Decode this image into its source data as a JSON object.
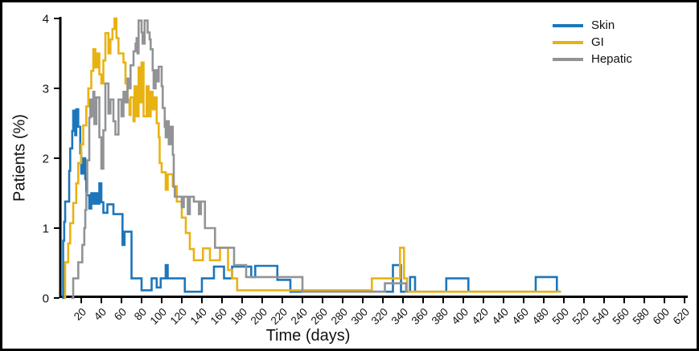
{
  "axes": {
    "x": {
      "title": "Time (days)",
      "ticks": [
        20,
        40,
        60,
        80,
        100,
        120,
        140,
        160,
        180,
        200,
        220,
        240,
        260,
        280,
        300,
        320,
        340,
        360,
        380,
        400,
        420,
        440,
        460,
        480,
        500,
        520,
        540,
        560,
        580,
        600,
        620
      ],
      "min": 0,
      "max": 630
    },
    "y": {
      "title": "Patients (%)",
      "ticks": [
        0,
        1,
        2,
        3,
        4
      ],
      "min": 0,
      "max": 4
    }
  },
  "chart_data": {
    "type": "line",
    "interpolation": "step-after",
    "title": "",
    "xlabel": "Time (days)",
    "ylabel": "Patients (%)",
    "xlim": [
      0,
      630
    ],
    "ylim": [
      0,
      4
    ],
    "grid": false,
    "legend_position": "top-right",
    "series": [
      {
        "name": "Skin",
        "color": "#1d76bb",
        "points": [
          [
            1,
            0
          ],
          [
            2,
            0.82
          ],
          [
            3,
            1.09
          ],
          [
            4,
            1.38
          ],
          [
            8,
            1.82
          ],
          [
            9,
            2.14
          ],
          [
            11,
            2.39
          ],
          [
            12,
            2.68
          ],
          [
            14,
            2.33
          ],
          [
            15,
            2.7
          ],
          [
            17,
            2.45
          ],
          [
            19,
            2.07
          ],
          [
            20,
            1.78
          ],
          [
            22,
            2.0
          ],
          [
            24,
            1.7
          ],
          [
            25,
            1.47
          ],
          [
            28,
            1.28
          ],
          [
            30,
            1.5
          ],
          [
            32,
            1.35
          ],
          [
            34,
            1.5
          ],
          [
            36,
            1.35
          ],
          [
            38,
            1.64
          ],
          [
            40,
            1.37
          ],
          [
            42,
            1.22
          ],
          [
            46,
            1.34
          ],
          [
            52,
            1.2
          ],
          [
            61,
            0.76
          ],
          [
            63,
            0.95
          ],
          [
            70,
            0.28
          ],
          [
            80,
            0.11
          ],
          [
            90,
            0.28
          ],
          [
            95,
            0.15
          ],
          [
            99,
            0.28
          ],
          [
            104,
            0.47
          ],
          [
            106,
            0.28
          ],
          [
            123,
            0.09
          ],
          [
            140,
            0.28
          ],
          [
            152,
            0.45
          ],
          [
            162,
            0.28
          ],
          [
            170,
            0.45
          ],
          [
            189,
            0.3
          ],
          [
            193,
            0.46
          ],
          [
            215,
            0.26
          ],
          [
            228,
            0.09
          ],
          [
            330,
            0.47
          ],
          [
            338,
            0.09
          ],
          [
            347,
            0.3
          ],
          [
            352,
            0.09
          ],
          [
            383,
            0.28
          ],
          [
            405,
            0.09
          ],
          [
            472,
            0.3
          ],
          [
            493,
            0.09
          ],
          [
            497,
            0.09
          ]
        ]
      },
      {
        "name": "GI",
        "color": "#e9b213",
        "points": [
          [
            3,
            0
          ],
          [
            4,
            0.51
          ],
          [
            7,
            0.78
          ],
          [
            9,
            1.07
          ],
          [
            12,
            1.36
          ],
          [
            15,
            1.64
          ],
          [
            17,
            1.93
          ],
          [
            20,
            2.2
          ],
          [
            22,
            2.47
          ],
          [
            25,
            2.74
          ],
          [
            27,
            3.0
          ],
          [
            30,
            3.25
          ],
          [
            32,
            3.56
          ],
          [
            34,
            3.3
          ],
          [
            36,
            3.5
          ],
          [
            38,
            3.2
          ],
          [
            40,
            3.07
          ],
          [
            42,
            3.4
          ],
          [
            44,
            3.79
          ],
          [
            47,
            3.5
          ],
          [
            49,
            3.7
          ],
          [
            51,
            3.85
          ],
          [
            53,
            4.0
          ],
          [
            55,
            3.72
          ],
          [
            57,
            3.5
          ],
          [
            62,
            3.37
          ],
          [
            64,
            3.07
          ],
          [
            66,
            2.84
          ],
          [
            68,
            2.62
          ],
          [
            69,
            2.87
          ],
          [
            72,
            2.53
          ],
          [
            73,
            3.03
          ],
          [
            75,
            2.6
          ],
          [
            77,
            3.3
          ],
          [
            79,
            2.8
          ],
          [
            80,
            3.37
          ],
          [
            82,
            2.6
          ],
          [
            85,
            3.03
          ],
          [
            87,
            2.6
          ],
          [
            89,
            2.95
          ],
          [
            91,
            2.7
          ],
          [
            93,
            2.87
          ],
          [
            95,
            2.5
          ],
          [
            97,
            2.3
          ],
          [
            98,
            1.93
          ],
          [
            100,
            1.8
          ],
          [
            104,
            1.55
          ],
          [
            106,
            1.77
          ],
          [
            111,
            1.6
          ],
          [
            115,
            1.38
          ],
          [
            120,
            1.15
          ],
          [
            124,
            0.93
          ],
          [
            128,
            0.7
          ],
          [
            132,
            0.54
          ],
          [
            141,
            0.71
          ],
          [
            148,
            0.54
          ],
          [
            158,
            0.72
          ],
          [
            166,
            0.4
          ],
          [
            170,
            0.28
          ],
          [
            175,
            0.11
          ],
          [
            309,
            0.28
          ],
          [
            337,
            0.72
          ],
          [
            341,
            0.28
          ],
          [
            344,
            0.09
          ],
          [
            497,
            0.09
          ]
        ]
      },
      {
        "name": "Hepatic",
        "color": "#919396",
        "points": [
          [
            10,
            0
          ],
          [
            12,
            0.28
          ],
          [
            17,
            0.51
          ],
          [
            21,
            0.76
          ],
          [
            23,
            1.0
          ],
          [
            24,
            1.26
          ],
          [
            25,
            1.51
          ],
          [
            26,
            1.97
          ],
          [
            28,
            2.58
          ],
          [
            29,
            2.84
          ],
          [
            31,
            2.6
          ],
          [
            32,
            2.95
          ],
          [
            33,
            2.49
          ],
          [
            35,
            2.87
          ],
          [
            38,
            2.3
          ],
          [
            40,
            1.85
          ],
          [
            42,
            2.4
          ],
          [
            44,
            3.07
          ],
          [
            47,
            2.64
          ],
          [
            49,
            2.84
          ],
          [
            52,
            2.53
          ],
          [
            54,
            2.34
          ],
          [
            57,
            2.84
          ],
          [
            60,
            2.6
          ],
          [
            62,
            2.95
          ],
          [
            64,
            2.8
          ],
          [
            66,
            3.14
          ],
          [
            68,
            3.0
          ],
          [
            69,
            3.33
          ],
          [
            72,
            3.53
          ],
          [
            74,
            3.64
          ],
          [
            75,
            3.72
          ],
          [
            76,
            3.5
          ],
          [
            77,
            3.97
          ],
          [
            80,
            3.8
          ],
          [
            81,
            3.64
          ],
          [
            83,
            3.97
          ],
          [
            86,
            3.8
          ],
          [
            88,
            3.7
          ],
          [
            89,
            3.56
          ],
          [
            91,
            3.26
          ],
          [
            92,
            3.0
          ],
          [
            94,
            3.26
          ],
          [
            96,
            3.1
          ],
          [
            97,
            3.31
          ],
          [
            100,
            3.03
          ],
          [
            101,
            2.72
          ],
          [
            103,
            2.45
          ],
          [
            104,
            2.3
          ],
          [
            105,
            2.53
          ],
          [
            107,
            2.2
          ],
          [
            109,
            2.45
          ],
          [
            111,
            2.05
          ],
          [
            112,
            1.59
          ],
          [
            113,
            1.45
          ],
          [
            120,
            1.3
          ],
          [
            122,
            1.45
          ],
          [
            126,
            1.2
          ],
          [
            128,
            1.45
          ],
          [
            132,
            1.38
          ],
          [
            137,
            1.2
          ],
          [
            139,
            1.38
          ],
          [
            143,
            1.0
          ],
          [
            153,
            0.72
          ],
          [
            172,
            0.47
          ],
          [
            184,
            0.3
          ],
          [
            240,
            0.09
          ],
          [
            322,
            0.21
          ],
          [
            343,
            0.09
          ],
          [
            345,
            0.09
          ]
        ]
      }
    ]
  }
}
